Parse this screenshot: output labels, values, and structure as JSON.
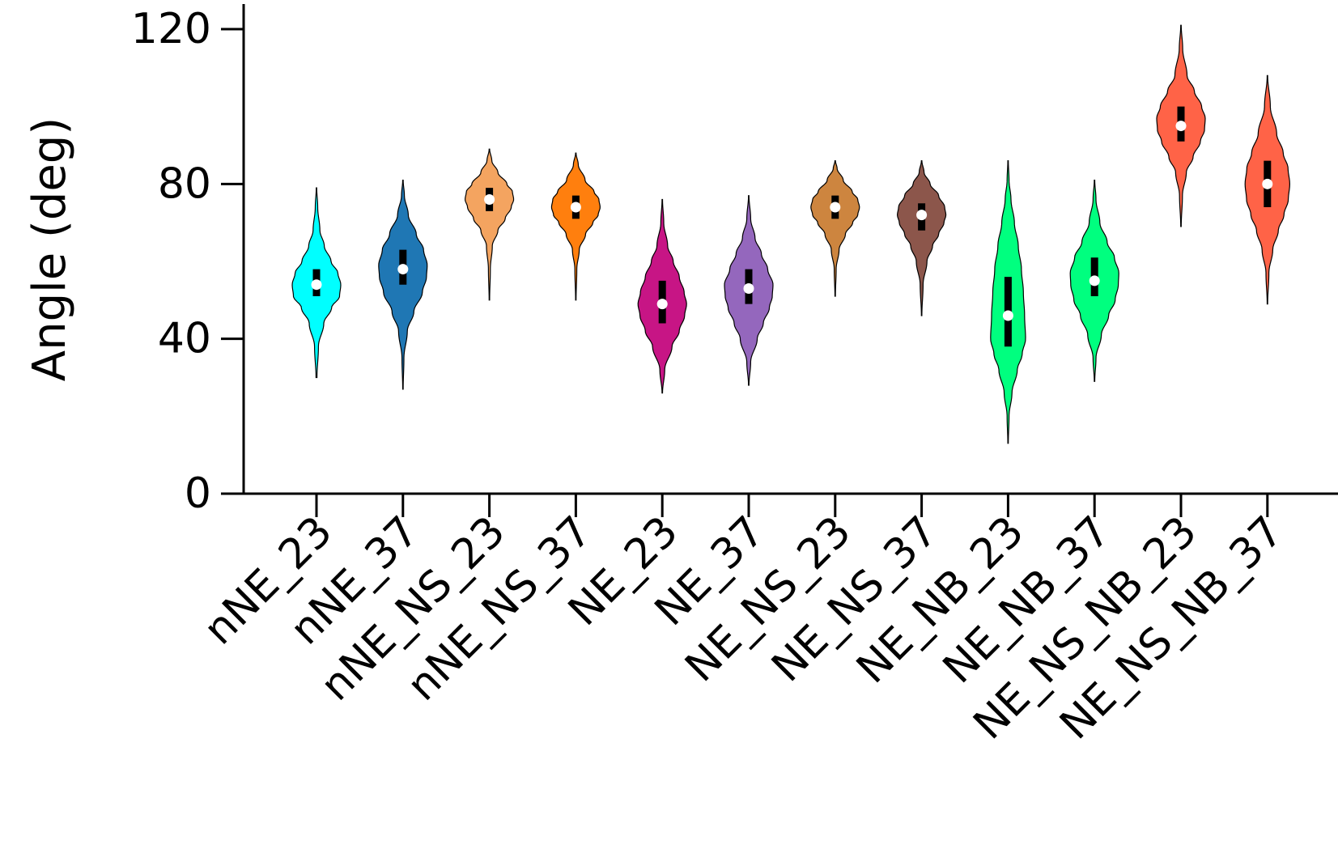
{
  "chart_data": {
    "type": "violin",
    "ylabel": "Angle (deg)",
    "xlabel": "",
    "ylim": [
      0,
      126
    ],
    "yticks": [
      0,
      40,
      80,
      120
    ],
    "grid": false,
    "categories": [
      "nNE_23",
      "nNE_37",
      "nNE_NS_23",
      "nNE_NS_37",
      "NE_23",
      "NE_37",
      "NE_NS_23",
      "NE_NS_37",
      "NE_NB_23",
      "NE_NB_37",
      "NE_NS_NB_23",
      "NE_NS_NB_37"
    ],
    "series": [
      {
        "category": "nNE_23",
        "color": "#00FFFF",
        "min": 30,
        "max": 79,
        "median": 54,
        "q1": 51,
        "q3": 58,
        "kde_x": [
          30,
          38,
          44,
          48,
          51,
          54,
          57,
          60,
          64,
          68,
          74,
          79
        ],
        "kde_w": [
          0.02,
          0.08,
          0.3,
          0.62,
          0.95,
          1.0,
          0.88,
          0.6,
          0.32,
          0.14,
          0.05,
          0.01
        ]
      },
      {
        "category": "nNE_37",
        "color": "#1F77B4",
        "min": 27,
        "max": 81,
        "median": 58,
        "q1": 54,
        "q3": 63,
        "kde_x": [
          27,
          35,
          42,
          47,
          52,
          56,
          59,
          63,
          67,
          72,
          77,
          81
        ],
        "kde_w": [
          0.01,
          0.04,
          0.18,
          0.45,
          0.8,
          0.97,
          1.0,
          0.85,
          0.55,
          0.22,
          0.06,
          0.01
        ]
      },
      {
        "category": "nNE_NS_23",
        "color": "#F4A460",
        "min": 50,
        "max": 89,
        "median": 76,
        "q1": 73,
        "q3": 79,
        "kde_x": [
          50,
          58,
          64,
          68,
          71,
          74,
          76,
          78,
          80,
          83,
          86,
          89
        ],
        "kde_w": [
          0.01,
          0.04,
          0.12,
          0.35,
          0.65,
          0.9,
          1.0,
          0.95,
          0.72,
          0.35,
          0.1,
          0.01
        ]
      },
      {
        "category": "nNE_NS_37",
        "color": "#FF7F0E",
        "min": 50,
        "max": 88,
        "median": 74,
        "q1": 71,
        "q3": 77,
        "kde_x": [
          50,
          58,
          63,
          67,
          70,
          72,
          74,
          76,
          78,
          81,
          85,
          88
        ],
        "kde_w": [
          0.01,
          0.04,
          0.14,
          0.4,
          0.7,
          0.92,
          1.0,
          0.95,
          0.75,
          0.38,
          0.1,
          0.01
        ]
      },
      {
        "category": "NE_23",
        "color": "#C71585",
        "min": 26,
        "max": 76,
        "median": 49,
        "q1": 44,
        "q3": 55,
        "kde_x": [
          26,
          32,
          38,
          42,
          46,
          49,
          52,
          56,
          60,
          64,
          70,
          76
        ],
        "kde_w": [
          0.01,
          0.1,
          0.4,
          0.7,
          0.92,
          1.0,
          0.9,
          0.7,
          0.45,
          0.22,
          0.06,
          0.01
        ]
      },
      {
        "category": "NE_37",
        "color": "#9467BD",
        "min": 28,
        "max": 77,
        "median": 53,
        "q1": 49,
        "q3": 58,
        "kde_x": [
          28,
          34,
          40,
          44,
          48,
          51,
          54,
          58,
          62,
          66,
          71,
          77
        ],
        "kde_w": [
          0.01,
          0.08,
          0.35,
          0.6,
          0.85,
          0.97,
          1.0,
          0.78,
          0.52,
          0.26,
          0.08,
          0.01
        ]
      },
      {
        "category": "NE_NS_23",
        "color": "#CD853F",
        "min": 51,
        "max": 86,
        "median": 74,
        "q1": 71,
        "q3": 77,
        "kde_x": [
          51,
          58,
          63,
          67,
          70,
          72,
          74,
          76,
          78,
          81,
          84,
          86
        ],
        "kde_w": [
          0.01,
          0.04,
          0.16,
          0.42,
          0.72,
          0.93,
          1.0,
          0.93,
          0.7,
          0.33,
          0.08,
          0.01
        ]
      },
      {
        "category": "NE_NS_37",
        "color": "#8C564B",
        "min": 46,
        "max": 86,
        "median": 72,
        "q1": 68,
        "q3": 75,
        "kde_x": [
          46,
          54,
          60,
          64,
          67,
          70,
          72,
          74,
          77,
          80,
          83,
          86
        ],
        "kde_w": [
          0.01,
          0.06,
          0.22,
          0.45,
          0.7,
          0.92,
          1.0,
          0.95,
          0.7,
          0.35,
          0.1,
          0.01
        ]
      },
      {
        "category": "NE_NB_23",
        "color": "#00FF7F",
        "min": 13,
        "max": 86,
        "median": 46,
        "q1": 38,
        "q3": 56,
        "kde_x": [
          13,
          20,
          26,
          32,
          36,
          40,
          46,
          52,
          58,
          64,
          70,
          76,
          81,
          86
        ],
        "kde_w": [
          0.01,
          0.04,
          0.16,
          0.38,
          0.58,
          0.72,
          0.68,
          0.63,
          0.55,
          0.42,
          0.26,
          0.12,
          0.04,
          0.01
        ]
      },
      {
        "category": "NE_NB_37",
        "color": "#00FF7F",
        "min": 29,
        "max": 81,
        "median": 55,
        "q1": 51,
        "q3": 61,
        "kde_x": [
          29,
          35,
          41,
          46,
          50,
          54,
          57,
          61,
          65,
          70,
          76,
          81
        ],
        "kde_w": [
          0.01,
          0.06,
          0.28,
          0.58,
          0.85,
          0.98,
          1.0,
          0.82,
          0.52,
          0.22,
          0.06,
          0.01
        ]
      },
      {
        "category": "NE_NS_NB_23",
        "color": "#FF6347",
        "min": 69,
        "max": 121,
        "median": 95,
        "q1": 91,
        "q3": 100,
        "kde_x": [
          69,
          77,
          83,
          87,
          91,
          94,
          97,
          100,
          104,
          108,
          115,
          121
        ],
        "kde_w": [
          0.01,
          0.06,
          0.22,
          0.5,
          0.8,
          0.97,
          1.0,
          0.85,
          0.55,
          0.25,
          0.07,
          0.01
        ]
      },
      {
        "category": "NE_NS_NB_37",
        "color": "#FF6347",
        "min": 49,
        "max": 108,
        "median": 80,
        "q1": 74,
        "q3": 86,
        "kde_x": [
          49,
          57,
          63,
          68,
          72,
          76,
          80,
          84,
          88,
          93,
          100,
          108
        ],
        "kde_w": [
          0.01,
          0.06,
          0.22,
          0.45,
          0.68,
          0.86,
          0.92,
          0.85,
          0.65,
          0.38,
          0.12,
          0.01
        ]
      }
    ]
  }
}
